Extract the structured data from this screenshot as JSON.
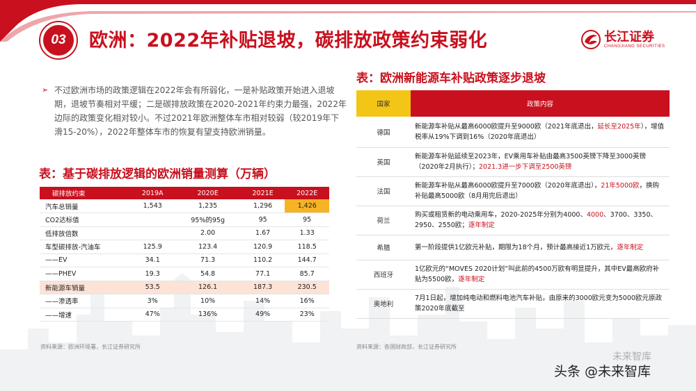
{
  "header": {
    "badge": "03",
    "title": "欧洲：2022年补贴退坡，碳排放政策约束弱化",
    "logo_cn": "长江证券",
    "logo_en": "CHANGJIANG SECURITIES"
  },
  "bullet": {
    "arrow": "➢",
    "text": "不过欧洲市场的政策逻辑在2022年会有所弱化，一是补贴政策开始进入退坡期，退坡节奏相对平缓；二是碳排放政策在2020-2021年约束力最强，2022年边际的政策变化相对较小。不过2021年欧洲整体车市相对较弱（较2019年下滑15-20%），2022年整体车市的恢复有望支持欧洲销量。"
  },
  "left_table": {
    "title": "表：基于碳排放逻辑的欧洲销量测算（万辆）",
    "headers": [
      "碳排放约束",
      "2019A",
      "2020E",
      "2021E",
      "2022E"
    ],
    "rows": [
      [
        "汽车总销量",
        "1,543",
        "1,235",
        "1,296",
        "1,426"
      ],
      [
        "CO2达标值",
        "",
        "95%的95g",
        "95",
        "95"
      ],
      [
        "低排放倍数",
        "",
        "2.00",
        "1.67",
        "1.33"
      ],
      [
        "车型碳排放-汽油车",
        "125.9",
        "123.4",
        "120.9",
        "118.5"
      ],
      [
        "——EV",
        "34.1",
        "71.3",
        "110.2",
        "144.7"
      ],
      [
        "——PHEV",
        "19.3",
        "54.8",
        "77.1",
        "85.7"
      ],
      [
        "新能源车销量",
        "53.5",
        "126.1",
        "187.3",
        "230.5"
      ],
      [
        "——渗透率",
        "3%",
        "10%",
        "14%",
        "16%"
      ],
      [
        "——增速",
        "47%",
        "136%",
        "49%",
        "23%"
      ]
    ],
    "source": "资料来源：欧洲环境署，长江证券研究所"
  },
  "right_table": {
    "title": "表：欧洲新能源车补贴政策逐步退坡",
    "headers": [
      "国家",
      "政策内容"
    ],
    "rows": [
      {
        "country": "德国",
        "policy": "新能源车补贴从最高6000欧提升至9000欧（2021年底退出，",
        "highlight": "延长至2025年",
        "policy_end": "），增值税率从19%下调到16%（2020年底退出）"
      },
      {
        "country": "英国",
        "policy": "新能源车补贴延续至2023年，EV乘用车补贴由最高3500英镑下降至3000英镑（2020年2月执行）；",
        "highlight": "2021.3进一步下调至2500英镑",
        "policy_end": ""
      },
      {
        "country": "法国",
        "policy": "新能源车补贴从最高6000欧提升至7000欧（2020年底退出），",
        "highlight": "21年5000欧",
        "policy_end": "，换购补贴最高5000欧（8月用完后退出）"
      },
      {
        "country": "荷兰",
        "policy": "购买或租赁新的电动乘用车，2020-2025年分别为4000、",
        "highlight": "4000",
        "policy_end": "、3700、3350、2950、2550欧；",
        "highlight2": "逐年制定"
      },
      {
        "country": "希腊",
        "policy": "第一阶段提供1亿欧元补贴，期限为18个月，预计最高接近1万欧元，",
        "highlight": "逐年制定",
        "policy_end": ""
      },
      {
        "country": "西班牙",
        "policy": "1亿欧元的“MOVES 2020计划”叫此前的4500万欧有明显提升，其中EV最高欧府补贴为5500欧，",
        "highlight": "逐年制定",
        "policy_end": ""
      },
      {
        "country": "奥地利",
        "policy": "7月1日起，增加纯电动和燃料电池汽车补贴，由原来的3000欧元变为5000欧元原政策2020年底截至",
        "highlight": "",
        "policy_end": ""
      }
    ],
    "source": "资料来源：各国财政部，长江证券研究所"
  },
  "watermark": {
    "main": "头条 @未来智库",
    "faint": "未来智库"
  },
  "colors": {
    "brand_red": "#c8101e",
    "yellow": "#f3c517",
    "highlight_orange": "#f5b325",
    "pink_row": "#fde2d6"
  }
}
